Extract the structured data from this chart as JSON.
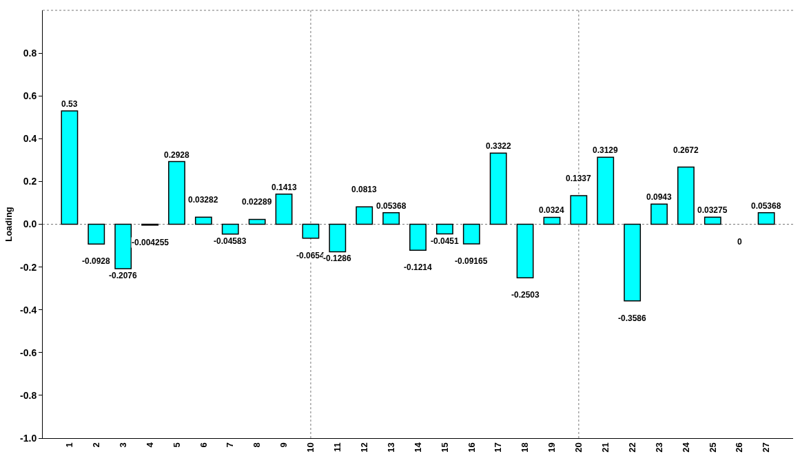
{
  "chart_data": {
    "type": "bar",
    "ylabel": "Loading",
    "categories": [
      "1",
      "2",
      "3",
      "4",
      "5",
      "6",
      "7",
      "8",
      "9",
      "10",
      "11",
      "12",
      "13",
      "14",
      "15",
      "16",
      "17",
      "18",
      "19",
      "20",
      "21",
      "22",
      "23",
      "24",
      "25",
      "26",
      "27"
    ],
    "values": [
      0.53,
      -0.0928,
      -0.2076,
      -0.004255,
      0.2928,
      0.03282,
      -0.04583,
      0.02289,
      0.1413,
      -0.0654,
      -0.1286,
      0.0813,
      0.05368,
      -0.1214,
      -0.0451,
      -0.09165,
      0.3322,
      -0.2503,
      0.0324,
      0.1337,
      0.3129,
      -0.3586,
      0.0943,
      0.2672,
      0.03275,
      0,
      0.05368
    ],
    "value_labels": [
      "0.53",
      "-0.0928",
      "-0.2076",
      "-0.004255",
      "0.2928",
      "0.03282",
      "-0.04583",
      "0.02289",
      "0.1413",
      "-0.0654",
      "-0.1286",
      "0.0813",
      "0.05368",
      "-0.1214",
      "-0.0451",
      "-0.09165",
      "0.3322",
      "-0.2503",
      "0.0324",
      "0.1337",
      "0.3129",
      "-0.3586",
      "0.0943",
      "0.2672",
      "0.03275",
      "0",
      "0.05368"
    ],
    "color": "#00ffff",
    "ylim": [
      -1,
      1
    ],
    "yticks": [
      {
        "value": -1,
        "label": "-1.0"
      },
      -0.8,
      -0.6,
      -0.4,
      -0.2,
      {
        "value": 0,
        "label": "0.0"
      },
      0.2,
      0.4,
      0.6,
      0.8
    ],
    "ref_lines": [
      {
        "axis": "y",
        "value": 0,
        "line_style": "dotted"
      },
      {
        "axis": "x",
        "value": "10",
        "line_style": "dotted"
      },
      {
        "axis": "x",
        "value": "20",
        "line_style": "dotted"
      }
    ],
    "grid": false,
    "legend": false
  }
}
